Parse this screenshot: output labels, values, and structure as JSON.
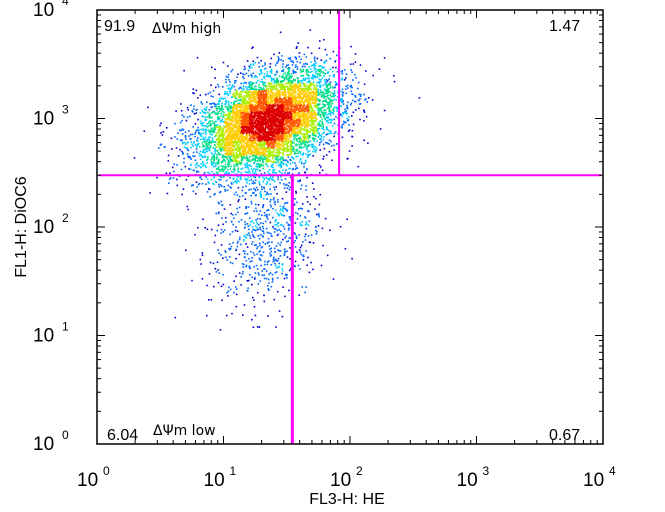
{
  "chart_data": {
    "type": "scatter",
    "xlabel": "FL3-H: HE",
    "ylabel": "FL1-H: DiOC6",
    "xscale": "log",
    "yscale": "log",
    "xlim": [
      1,
      10000
    ],
    "ylim": [
      1,
      10000
    ],
    "x_ticks": [
      {
        "base": "10",
        "exp": "0",
        "value": 1
      },
      {
        "base": "10",
        "exp": "1",
        "value": 10
      },
      {
        "base": "10",
        "exp": "2",
        "value": 100
      },
      {
        "base": "10",
        "exp": "3",
        "value": 1000
      },
      {
        "base": "10",
        "exp": "4",
        "value": 10000
      }
    ],
    "y_ticks": [
      {
        "base": "10",
        "exp": "0",
        "value": 1
      },
      {
        "base": "10",
        "exp": "1",
        "value": 10
      },
      {
        "base": "10",
        "exp": "2",
        "value": 100
      },
      {
        "base": "10",
        "exp": "3",
        "value": 1000
      },
      {
        "base": "10",
        "exp": "4",
        "value": 10000
      }
    ],
    "quadrant_gates": {
      "y_threshold": 300,
      "x_threshold_lower": 35,
      "x_threshold_upper": 82
    },
    "quadrants": {
      "upper_left": {
        "percent": "91.9",
        "label": "ΔΨm high"
      },
      "upper_right": {
        "percent": "1.47"
      },
      "lower_left": {
        "percent": "6.04",
        "label": "ΔΨm low"
      },
      "lower_right": {
        "percent": "0.67"
      }
    },
    "populations": [
      {
        "name_hidden": "high",
        "center_x": 22,
        "center_y": 950,
        "spread_log_x": 0.28,
        "spread_log_y": 0.22,
        "fraction": 0.9
      },
      {
        "name_hidden": "low",
        "center_x": 22,
        "center_y": 90,
        "spread_log_x": 0.22,
        "spread_log_y": 0.35,
        "fraction": 0.1
      }
    ],
    "density_colors": [
      "#0000cc",
      "#0066ff",
      "#00ccff",
      "#00dd88",
      "#aaee00",
      "#ffcc00",
      "#ff5500",
      "#dd0000"
    ],
    "gate_color": "#ff00ff",
    "grid": false
  }
}
